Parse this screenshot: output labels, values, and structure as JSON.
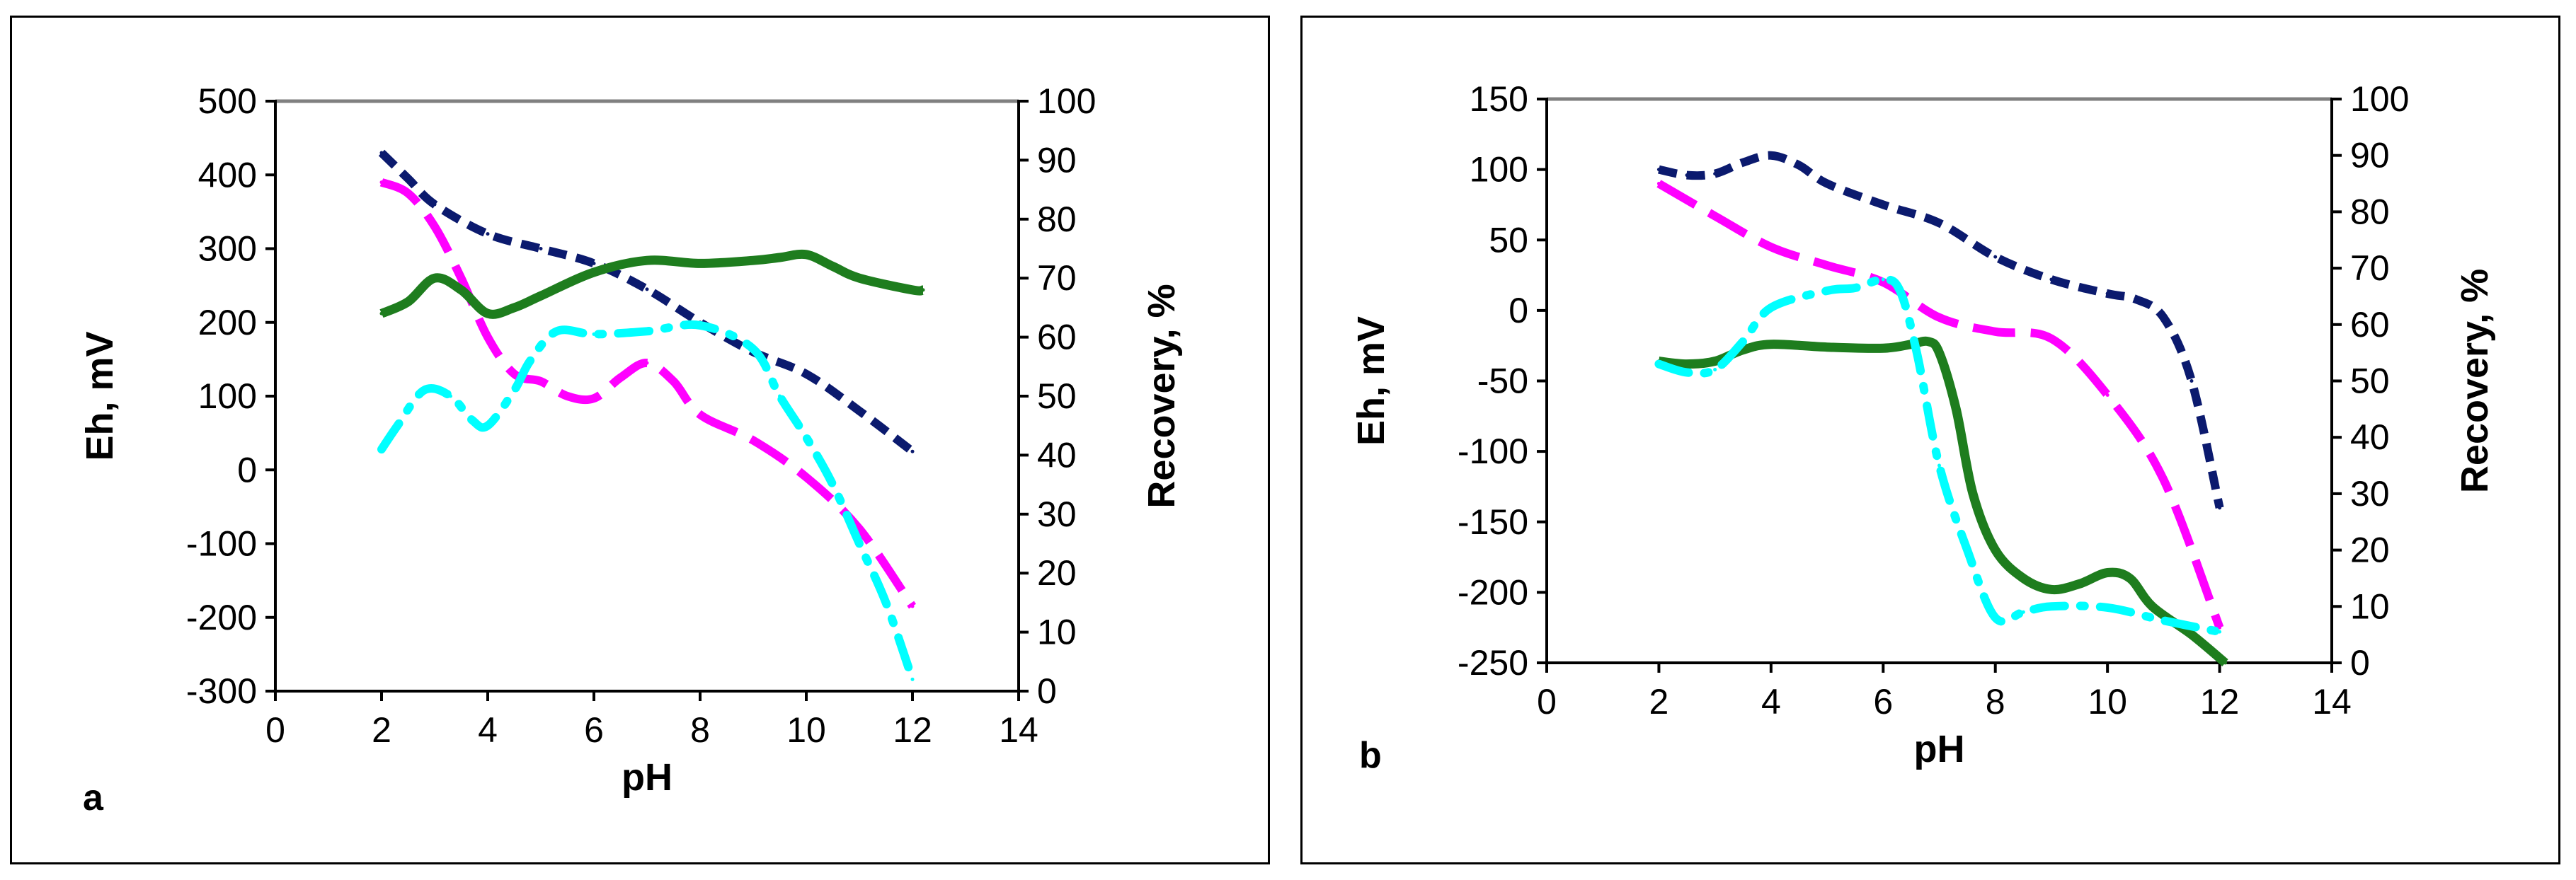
{
  "chart_data": [
    {
      "type": "line",
      "panel_label": "a",
      "xlabel": "pH",
      "ylabel": "Eh, mV",
      "y2label": "Recovery, %",
      "xlim": [
        0,
        14
      ],
      "ylim": [
        -300,
        500
      ],
      "y2lim": [
        0,
        100
      ],
      "xticks": [
        0,
        2,
        4,
        6,
        8,
        10,
        12,
        14
      ],
      "yticks": [
        -300,
        -200,
        -100,
        0,
        100,
        200,
        300,
        400,
        500
      ],
      "y2ticks": [
        0,
        10,
        20,
        30,
        40,
        50,
        60,
        70,
        80,
        90,
        100
      ],
      "series": [
        {
          "name": "navy dashed",
          "axis": "left",
          "color": "#0b1a6e",
          "style": "dash",
          "points": [
            [
              2,
              430
            ],
            [
              2.5,
              395
            ],
            [
              3,
              360
            ],
            [
              4,
              320
            ],
            [
              5,
              300
            ],
            [
              6,
              280
            ],
            [
              7,
              245
            ],
            [
              8,
              200
            ],
            [
              9,
              160
            ],
            [
              10,
              130
            ],
            [
              11,
              80
            ],
            [
              12,
              25
            ]
          ]
        },
        {
          "name": "magenta long-dash",
          "axis": "left",
          "color": "#ff00ff",
          "style": "longdash",
          "points": [
            [
              2,
              390
            ],
            [
              2.5,
              375
            ],
            [
              3,
              330
            ],
            [
              3.5,
              260
            ],
            [
              4,
              180
            ],
            [
              4.5,
              130
            ],
            [
              5,
              120
            ],
            [
              5.5,
              100
            ],
            [
              6,
              97
            ],
            [
              6.5,
              125
            ],
            [
              7,
              145
            ],
            [
              7.5,
              120
            ],
            [
              8,
              75
            ],
            [
              9,
              40
            ],
            [
              10,
              -10
            ],
            [
              11,
              -80
            ],
            [
              12,
              -185
            ]
          ]
        },
        {
          "name": "green solid",
          "axis": "right",
          "color": "#1e7d1e",
          "style": "solid",
          "points": [
            [
              2,
              64
            ],
            [
              2.5,
              66
            ],
            [
              3,
              70
            ],
            [
              3.5,
              68
            ],
            [
              4,
              64
            ],
            [
              4.5,
              65
            ],
            [
              5,
              67
            ],
            [
              6,
              71
            ],
            [
              7,
              73
            ],
            [
              8,
              72.5
            ],
            [
              9,
              73
            ],
            [
              9.5,
              73.5
            ],
            [
              10,
              74
            ],
            [
              10.5,
              72
            ],
            [
              11,
              70
            ],
            [
              12,
              68
            ],
            [
              12.2,
              68
            ]
          ]
        },
        {
          "name": "cyan dash-dot",
          "axis": "right",
          "color": "#00ffff",
          "style": "dashdot",
          "points": [
            [
              2,
              41
            ],
            [
              2.3,
              45
            ],
            [
              2.8,
              51
            ],
            [
              3.3,
              50
            ],
            [
              3.7,
              46
            ],
            [
              4,
              45
            ],
            [
              4.5,
              51
            ],
            [
              4.8,
              56
            ],
            [
              5.3,
              61
            ],
            [
              6,
              60.5
            ],
            [
              7,
              61
            ],
            [
              8,
              62
            ],
            [
              9,
              58
            ],
            [
              9.5,
              50
            ],
            [
              10,
              43
            ],
            [
              10.5,
              35
            ],
            [
              11,
              25
            ],
            [
              11.5,
              15
            ],
            [
              12,
              2
            ]
          ]
        }
      ]
    },
    {
      "type": "line",
      "panel_label": "b",
      "xlabel": "pH",
      "ylabel": "Eh, mV",
      "y2label": "Recovery, %",
      "xlim": [
        0,
        14
      ],
      "ylim": [
        -250,
        150
      ],
      "y2lim": [
        0,
        100
      ],
      "xticks": [
        0,
        2,
        4,
        6,
        8,
        10,
        12,
        14
      ],
      "yticks": [
        -250,
        -200,
        -150,
        -100,
        -50,
        0,
        50,
        100,
        150
      ],
      "y2ticks": [
        0,
        10,
        20,
        30,
        40,
        50,
        60,
        70,
        80,
        90,
        100
      ],
      "series": [
        {
          "name": "navy dashed",
          "axis": "left",
          "color": "#0b1a6e",
          "style": "dash",
          "points": [
            [
              2,
              100
            ],
            [
              2.5,
              96
            ],
            [
              3,
              97
            ],
            [
              3.5,
              105
            ],
            [
              4,
              110
            ],
            [
              4.5,
              103
            ],
            [
              5,
              90
            ],
            [
              6,
              75
            ],
            [
              7,
              62
            ],
            [
              8,
              38
            ],
            [
              9,
              22
            ],
            [
              10,
              12
            ],
            [
              10.5,
              8
            ],
            [
              11,
              -5
            ],
            [
              11.5,
              -50
            ],
            [
              12,
              -140
            ]
          ]
        },
        {
          "name": "magenta long-dash",
          "axis": "left",
          "color": "#ff00ff",
          "style": "longdash",
          "points": [
            [
              2,
              90
            ],
            [
              3,
              67
            ],
            [
              4,
              45
            ],
            [
              5,
              32
            ],
            [
              6,
              20
            ],
            [
              7,
              -5
            ],
            [
              8,
              -15
            ],
            [
              9,
              -20
            ],
            [
              10,
              -60
            ],
            [
              11,
              -120
            ],
            [
              12,
              -225
            ]
          ]
        },
        {
          "name": "green solid",
          "axis": "right",
          "color": "#1e7d1e",
          "style": "solid",
          "points": [
            [
              2,
              53.5
            ],
            [
              2.5,
              53
            ],
            [
              3,
              53.5
            ],
            [
              3.5,
              55.5
            ],
            [
              4,
              56.5
            ],
            [
              5,
              56
            ],
            [
              6,
              55.8
            ],
            [
              6.5,
              56.5
            ],
            [
              6.8,
              57
            ],
            [
              7,
              55
            ],
            [
              7.3,
              45
            ],
            [
              7.6,
              30
            ],
            [
              8,
              20
            ],
            [
              8.5,
              15
            ],
            [
              9,
              13
            ],
            [
              9.5,
              14
            ],
            [
              10,
              16
            ],
            [
              10.4,
              15
            ],
            [
              10.8,
              10
            ],
            [
              11.5,
              5
            ],
            [
              12.1,
              0
            ]
          ]
        },
        {
          "name": "cyan dash-dot",
          "axis": "right",
          "color": "#00ffff",
          "style": "dashdot",
          "points": [
            [
              2,
              53
            ],
            [
              2.5,
              51.5
            ],
            [
              3,
              52
            ],
            [
              3.5,
              57
            ],
            [
              4,
              63
            ],
            [
              5,
              66
            ],
            [
              5.5,
              66.5
            ],
            [
              6,
              68
            ],
            [
              6.3,
              66
            ],
            [
              6.6,
              55
            ],
            [
              7,
              35
            ],
            [
              7.5,
              20
            ],
            [
              8,
              8
            ],
            [
              8.5,
              9
            ],
            [
              9,
              10
            ],
            [
              10,
              9.8
            ],
            [
              11,
              7.5
            ],
            [
              12,
              5.5
            ]
          ]
        }
      ]
    }
  ]
}
